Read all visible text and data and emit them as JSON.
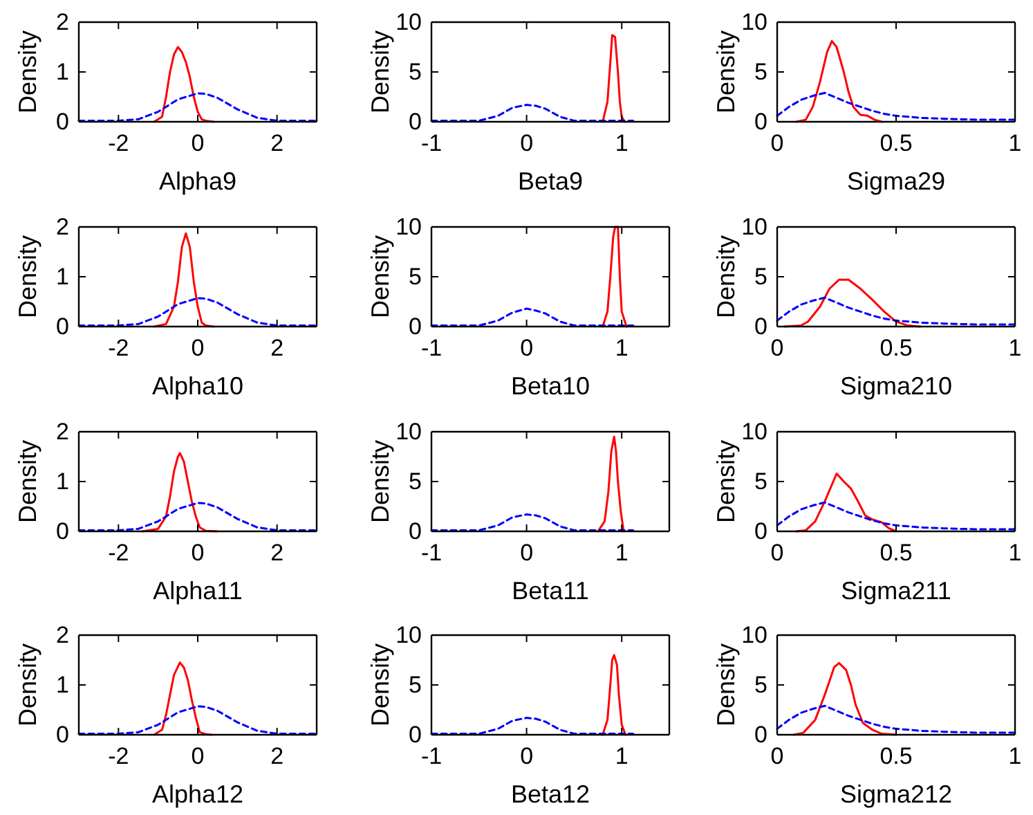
{
  "chart_data": [
    {
      "type": "line",
      "xlabel": "Alpha9",
      "ylabel": "Density",
      "xlim": [
        -3,
        3
      ],
      "xticks": [
        -2,
        0,
        2
      ],
      "ylim": [
        0,
        2
      ],
      "yticks": [
        0,
        1,
        2
      ],
      "grid": false,
      "series": [
        {
          "color": "#ff0000",
          "line_style": "solid",
          "x": [
            -1.1,
            -0.9,
            -0.8,
            -0.7,
            -0.6,
            -0.5,
            -0.4,
            -0.3,
            -0.2,
            -0.1,
            0,
            0.1,
            0.2,
            0.4
          ],
          "values": [
            0,
            0.1,
            0.5,
            1.0,
            1.35,
            1.5,
            1.4,
            1.2,
            0.9,
            0.5,
            0.2,
            0.05,
            0.02,
            0
          ]
        },
        {
          "color": "#0000ff",
          "line_style": "dashed",
          "x": [
            -3,
            -2,
            -1.5,
            -1,
            -0.5,
            0,
            0.2,
            0.5,
            1,
            1.5,
            2,
            3
          ],
          "values": [
            0.02,
            0.02,
            0.05,
            0.2,
            0.45,
            0.57,
            0.56,
            0.48,
            0.25,
            0.08,
            0.02,
            0.02
          ]
        }
      ]
    },
    {
      "type": "line",
      "xlabel": "Beta9",
      "ylabel": "Density",
      "xlim": [
        -1,
        1.5
      ],
      "xticks": [
        -1,
        0,
        1
      ],
      "ylim": [
        0,
        10
      ],
      "yticks": [
        0,
        5,
        10
      ],
      "grid": false,
      "series": [
        {
          "color": "#ff0000",
          "line_style": "solid",
          "x": [
            0.8,
            0.85,
            0.88,
            0.9,
            0.93,
            0.96,
            0.98,
            1.0,
            1.03
          ],
          "values": [
            0,
            2,
            6,
            8.7,
            8.5,
            5,
            2,
            0.5,
            0
          ]
        },
        {
          "color": "#0000ff",
          "line_style": "dashed",
          "x": [
            -1,
            -0.5,
            -0.3,
            -0.15,
            0,
            0.1,
            0.2,
            0.35,
            0.5,
            1.12
          ],
          "values": [
            0.1,
            0.1,
            0.6,
            1.4,
            1.7,
            1.6,
            1.3,
            0.5,
            0.1,
            0.1
          ]
        }
      ]
    },
    {
      "type": "line",
      "xlabel": "Sigma29",
      "ylabel": "Density",
      "xlim": [
        0,
        1
      ],
      "xticks": [
        0,
        0.5,
        1
      ],
      "ylim": [
        0,
        10
      ],
      "yticks": [
        0,
        5,
        10
      ],
      "grid": false,
      "series": [
        {
          "color": "#ff0000",
          "line_style": "solid",
          "x": [
            0.08,
            0.12,
            0.15,
            0.18,
            0.21,
            0.23,
            0.25,
            0.28,
            0.3,
            0.32,
            0.35,
            0.38,
            0.41,
            0.44
          ],
          "values": [
            0,
            0.2,
            1.5,
            4,
            7,
            8.1,
            7.5,
            5,
            3,
            1.5,
            0.7,
            0.6,
            0.2,
            0
          ]
        },
        {
          "color": "#0000ff",
          "line_style": "dashed",
          "x": [
            0,
            0.05,
            0.1,
            0.15,
            0.2,
            0.25,
            0.3,
            0.35,
            0.4,
            0.45,
            0.5,
            0.6,
            0.7,
            0.85,
            1
          ],
          "values": [
            0.6,
            1.5,
            2.2,
            2.6,
            2.9,
            2.4,
            1.9,
            1.5,
            1.1,
            0.8,
            0.6,
            0.4,
            0.3,
            0.2,
            0.2
          ]
        }
      ]
    },
    {
      "type": "line",
      "xlabel": "Alpha10",
      "ylabel": "Density",
      "xlim": [
        -3,
        3
      ],
      "xticks": [
        -2,
        0,
        2
      ],
      "ylim": [
        0,
        2
      ],
      "yticks": [
        0,
        1,
        2
      ],
      "grid": false,
      "series": [
        {
          "color": "#ff0000",
          "line_style": "solid",
          "x": [
            -1.1,
            -0.8,
            -0.6,
            -0.5,
            -0.4,
            -0.3,
            -0.2,
            -0.1,
            0,
            0.1,
            0.2,
            0.4
          ],
          "values": [
            0,
            0.05,
            0.4,
            0.9,
            1.6,
            1.87,
            1.6,
            0.9,
            0.4,
            0.08,
            0.02,
            0
          ]
        },
        {
          "color": "#0000ff",
          "line_style": "dashed",
          "x": [
            -3,
            -2,
            -1.5,
            -1,
            -0.5,
            0,
            0.2,
            0.5,
            1,
            1.5,
            2,
            3
          ],
          "values": [
            0.02,
            0.02,
            0.05,
            0.2,
            0.45,
            0.57,
            0.56,
            0.48,
            0.25,
            0.08,
            0.02,
            0.02
          ]
        }
      ]
    },
    {
      "type": "line",
      "xlabel": "Beta10",
      "ylabel": "Density",
      "xlim": [
        -1,
        1.5
      ],
      "xticks": [
        -1,
        0,
        1
      ],
      "ylim": [
        0,
        10
      ],
      "yticks": [
        0,
        5,
        10
      ],
      "grid": false,
      "series": [
        {
          "color": "#ff0000",
          "line_style": "solid",
          "x": [
            0.8,
            0.85,
            0.88,
            0.91,
            0.93,
            0.96,
            0.98,
            1.0,
            1.05
          ],
          "values": [
            0,
            1.5,
            5,
            9,
            10,
            10,
            5,
            1.5,
            0
          ]
        },
        {
          "color": "#0000ff",
          "line_style": "dashed",
          "x": [
            -1,
            -0.5,
            -0.3,
            -0.15,
            0,
            0.1,
            0.2,
            0.35,
            0.5,
            1.12
          ],
          "values": [
            0.1,
            0.1,
            0.6,
            1.4,
            1.8,
            1.6,
            1.3,
            0.5,
            0.1,
            0.1
          ]
        }
      ]
    },
    {
      "type": "line",
      "xlabel": "Sigma210",
      "ylabel": "Density",
      "xlim": [
        0,
        1
      ],
      "xticks": [
        0,
        0.5,
        1
      ],
      "ylim": [
        0,
        10
      ],
      "yticks": [
        0,
        5,
        10
      ],
      "grid": false,
      "series": [
        {
          "color": "#ff0000",
          "line_style": "solid",
          "x": [
            0.03,
            0.1,
            0.13,
            0.18,
            0.22,
            0.26,
            0.3,
            0.35,
            0.4,
            0.45,
            0.5,
            0.55,
            0.6
          ],
          "values": [
            0,
            0.1,
            0.5,
            2,
            3.8,
            4.7,
            4.7,
            3.8,
            2.7,
            1.5,
            0.5,
            0.1,
            0
          ]
        },
        {
          "color": "#0000ff",
          "line_style": "dashed",
          "x": [
            0,
            0.05,
            0.1,
            0.15,
            0.2,
            0.25,
            0.3,
            0.35,
            0.4,
            0.45,
            0.5,
            0.6,
            0.7,
            0.85,
            1
          ],
          "values": [
            0.6,
            1.5,
            2.2,
            2.6,
            2.9,
            2.4,
            1.9,
            1.5,
            1.1,
            0.8,
            0.6,
            0.4,
            0.3,
            0.2,
            0.2
          ]
        }
      ]
    },
    {
      "type": "line",
      "xlabel": "Alpha11",
      "ylabel": "Density",
      "xlim": [
        -3,
        3
      ],
      "xticks": [
        -2,
        0,
        2
      ],
      "ylim": [
        0,
        2
      ],
      "yticks": [
        0,
        1,
        2
      ],
      "grid": false,
      "series": [
        {
          "color": "#ff0000",
          "line_style": "solid",
          "x": [
            -1.4,
            -1.0,
            -0.8,
            -0.7,
            -0.6,
            -0.5,
            -0.45,
            -0.35,
            -0.25,
            -0.15,
            -0.05,
            0.05,
            0.2,
            0.5
          ],
          "values": [
            0,
            0.05,
            0.3,
            0.7,
            1.2,
            1.5,
            1.57,
            1.4,
            1.0,
            0.6,
            0.3,
            0.08,
            0.01,
            0
          ]
        },
        {
          "color": "#0000ff",
          "line_style": "dashed",
          "x": [
            -3,
            -2,
            -1.5,
            -1,
            -0.5,
            0,
            0.2,
            0.5,
            1,
            1.5,
            2,
            3
          ],
          "values": [
            0.02,
            0.02,
            0.05,
            0.2,
            0.45,
            0.57,
            0.56,
            0.48,
            0.25,
            0.08,
            0.02,
            0.02
          ]
        }
      ]
    },
    {
      "type": "line",
      "xlabel": "Beta11",
      "ylabel": "Density",
      "xlim": [
        -1,
        1.5
      ],
      "xticks": [
        -1,
        0,
        1
      ],
      "ylim": [
        0,
        10
      ],
      "yticks": [
        0,
        5,
        10
      ],
      "grid": false,
      "series": [
        {
          "color": "#ff0000",
          "line_style": "solid",
          "x": [
            0.75,
            0.82,
            0.86,
            0.89,
            0.92,
            0.94,
            0.96,
            0.99,
            1.02
          ],
          "values": [
            0,
            1,
            4,
            8,
            9.5,
            8,
            5,
            2,
            0
          ]
        },
        {
          "color": "#0000ff",
          "line_style": "dashed",
          "x": [
            -1,
            -0.5,
            -0.3,
            -0.15,
            0,
            0.1,
            0.2,
            0.35,
            0.5,
            1.12
          ],
          "values": [
            0.1,
            0.1,
            0.6,
            1.4,
            1.7,
            1.6,
            1.3,
            0.5,
            0.1,
            0.1
          ]
        }
      ]
    },
    {
      "type": "line",
      "xlabel": "Sigma211",
      "ylabel": "Density",
      "xlim": [
        0,
        1
      ],
      "xticks": [
        0,
        0.5,
        1
      ],
      "ylim": [
        0,
        10
      ],
      "yticks": [
        0,
        5,
        10
      ],
      "grid": false,
      "series": [
        {
          "color": "#ff0000",
          "line_style": "solid",
          "x": [
            0.08,
            0.12,
            0.16,
            0.2,
            0.25,
            0.28,
            0.31,
            0.34,
            0.37,
            0.4,
            0.44,
            0.47,
            0.5
          ],
          "values": [
            0,
            0.1,
            1,
            3,
            5.8,
            5,
            4.3,
            3,
            1.6,
            1.2,
            0.9,
            0.3,
            0
          ]
        },
        {
          "color": "#0000ff",
          "line_style": "dashed",
          "x": [
            0,
            0.05,
            0.1,
            0.15,
            0.2,
            0.25,
            0.3,
            0.35,
            0.4,
            0.45,
            0.5,
            0.6,
            0.7,
            0.85,
            1
          ],
          "values": [
            0.6,
            1.5,
            2.2,
            2.6,
            2.9,
            2.4,
            1.9,
            1.5,
            1.1,
            0.8,
            0.6,
            0.4,
            0.3,
            0.2,
            0.2
          ]
        }
      ]
    },
    {
      "type": "line",
      "xlabel": "Alpha12",
      "ylabel": "Density",
      "xlim": [
        -3,
        3
      ],
      "xticks": [
        -2,
        0,
        2
      ],
      "ylim": [
        0,
        2
      ],
      "yticks": [
        0,
        1,
        2
      ],
      "grid": false,
      "series": [
        {
          "color": "#ff0000",
          "line_style": "solid",
          "x": [
            -1.1,
            -0.9,
            -0.8,
            -0.7,
            -0.6,
            -0.45,
            -0.35,
            -0.25,
            -0.15,
            -0.05,
            0.05,
            0.2,
            0.35
          ],
          "values": [
            0,
            0.1,
            0.4,
            0.8,
            1.2,
            1.45,
            1.35,
            1.1,
            0.7,
            0.35,
            0.05,
            0.01,
            0
          ]
        },
        {
          "color": "#0000ff",
          "line_style": "dashed",
          "x": [
            -3,
            -2,
            -1.5,
            -1,
            -0.5,
            0,
            0.2,
            0.5,
            1,
            1.5,
            2,
            3
          ],
          "values": [
            0.02,
            0.02,
            0.05,
            0.2,
            0.45,
            0.57,
            0.56,
            0.48,
            0.25,
            0.08,
            0.02,
            0.02
          ]
        }
      ]
    },
    {
      "type": "line",
      "xlabel": "Beta12",
      "ylabel": "Density",
      "xlim": [
        -1,
        1.5
      ],
      "xticks": [
        -1,
        0,
        1
      ],
      "ylim": [
        0,
        10
      ],
      "yticks": [
        0,
        5,
        10
      ],
      "grid": false,
      "series": [
        {
          "color": "#ff0000",
          "line_style": "solid",
          "x": [
            0.8,
            0.85,
            0.88,
            0.9,
            0.92,
            0.95,
            0.97,
            1.0,
            1.04
          ],
          "values": [
            0,
            1.5,
            5,
            7.5,
            8,
            7,
            4,
            1,
            0
          ]
        },
        {
          "color": "#0000ff",
          "line_style": "dashed",
          "x": [
            -1,
            -0.5,
            -0.3,
            -0.15,
            0,
            0.1,
            0.2,
            0.35,
            0.5,
            1.12
          ],
          "values": [
            0.1,
            0.1,
            0.6,
            1.4,
            1.7,
            1.6,
            1.3,
            0.5,
            0.1,
            0.1
          ]
        }
      ]
    },
    {
      "type": "line",
      "xlabel": "Sigma212",
      "ylabel": "Density",
      "xlim": [
        0,
        1
      ],
      "xticks": [
        0,
        0.5,
        1
      ],
      "ylim": [
        0,
        10
      ],
      "yticks": [
        0,
        5,
        10
      ],
      "grid": false,
      "series": [
        {
          "color": "#ff0000",
          "line_style": "solid",
          "x": [
            0.07,
            0.11,
            0.16,
            0.2,
            0.24,
            0.26,
            0.29,
            0.31,
            0.33,
            0.36,
            0.4,
            0.44,
            0.5
          ],
          "values": [
            0,
            0.2,
            1.5,
            4,
            6.8,
            7.2,
            6.5,
            5,
            3,
            1.2,
            0.5,
            0.1,
            0
          ]
        },
        {
          "color": "#0000ff",
          "line_style": "dashed",
          "x": [
            0,
            0.05,
            0.1,
            0.15,
            0.2,
            0.25,
            0.3,
            0.35,
            0.4,
            0.45,
            0.5,
            0.6,
            0.7,
            0.85,
            1
          ],
          "values": [
            0.6,
            1.5,
            2.2,
            2.6,
            2.9,
            2.4,
            1.9,
            1.5,
            1.1,
            0.8,
            0.6,
            0.4,
            0.3,
            0.2,
            0.2
          ]
        }
      ]
    }
  ]
}
